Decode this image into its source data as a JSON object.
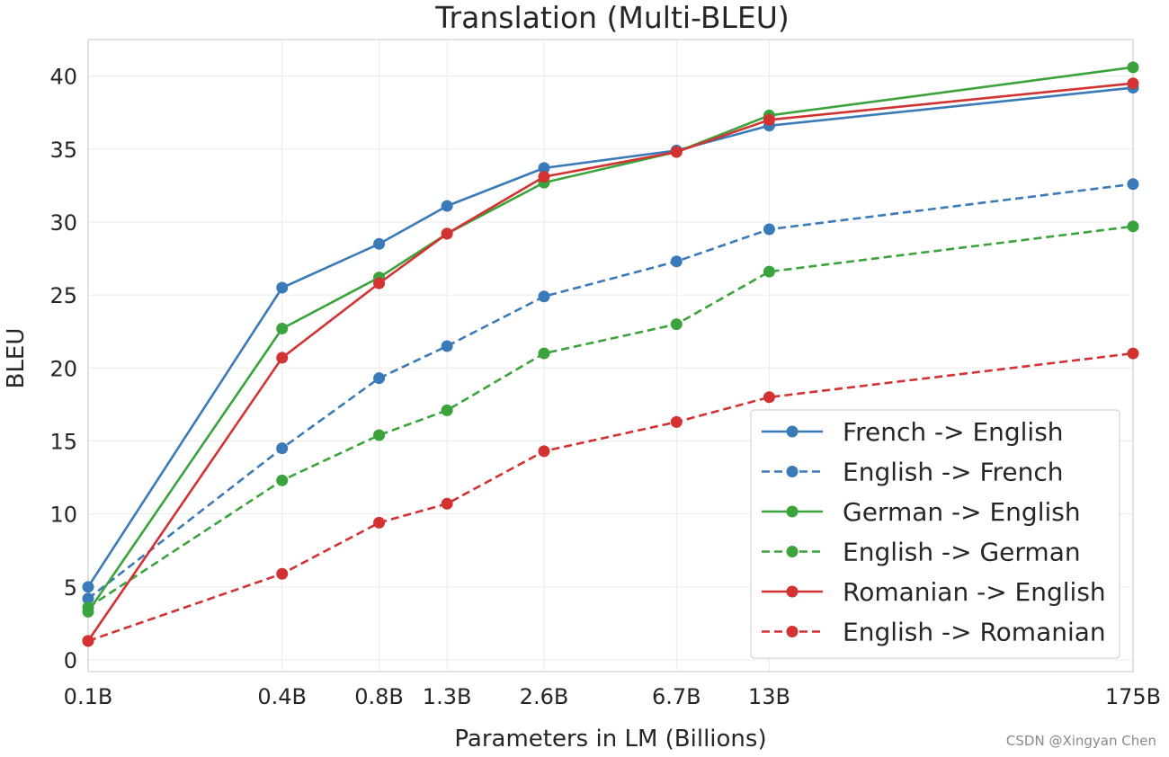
{
  "chart_data": {
    "type": "line",
    "title": "Translation (Multi-BLEU)",
    "xlabel": "Parameters in LM (Billions)",
    "ylabel": "BLEU",
    "x_scale": "log",
    "x": [
      0.1,
      0.4,
      0.8,
      1.3,
      2.6,
      6.7,
      13,
      175
    ],
    "categories": [
      "0.1B",
      "0.4B",
      "0.8B",
      "1.3B",
      "2.6B",
      "6.7B",
      "13B",
      "175B"
    ],
    "ylim": [
      -0.8,
      42.5
    ],
    "yticks": [
      0,
      5,
      10,
      15,
      20,
      25,
      30,
      35,
      40
    ],
    "grid": true,
    "legend_position": "lower-right",
    "series": [
      {
        "name": "French -> English",
        "color": "#3a7ab8",
        "style": "solid",
        "values": [
          5.0,
          25.5,
          28.5,
          31.1,
          33.7,
          34.9,
          36.6,
          39.2
        ]
      },
      {
        "name": "English -> French",
        "color": "#3a7ab8",
        "style": "dashed",
        "values": [
          4.2,
          14.5,
          19.3,
          21.5,
          24.9,
          27.3,
          29.5,
          32.6
        ]
      },
      {
        "name": "German -> English",
        "color": "#3ba33b",
        "style": "solid",
        "values": [
          3.3,
          22.7,
          26.2,
          29.2,
          32.7,
          34.8,
          37.3,
          40.6
        ]
      },
      {
        "name": "English -> German",
        "color": "#3ba33b",
        "style": "dashed",
        "values": [
          3.6,
          12.3,
          15.4,
          17.1,
          21.0,
          23.0,
          26.6,
          29.7
        ]
      },
      {
        "name": "Romanian -> English",
        "color": "#d33232",
        "style": "solid",
        "values": [
          1.3,
          20.7,
          25.8,
          29.2,
          33.1,
          34.8,
          37.0,
          39.5
        ]
      },
      {
        "name": "English -> Romanian",
        "color": "#d33232",
        "style": "dashed",
        "values": [
          1.3,
          5.9,
          9.4,
          10.7,
          14.3,
          16.3,
          18.0,
          21.0
        ]
      }
    ]
  },
  "watermark": "CSDN @Xingyan Chen"
}
